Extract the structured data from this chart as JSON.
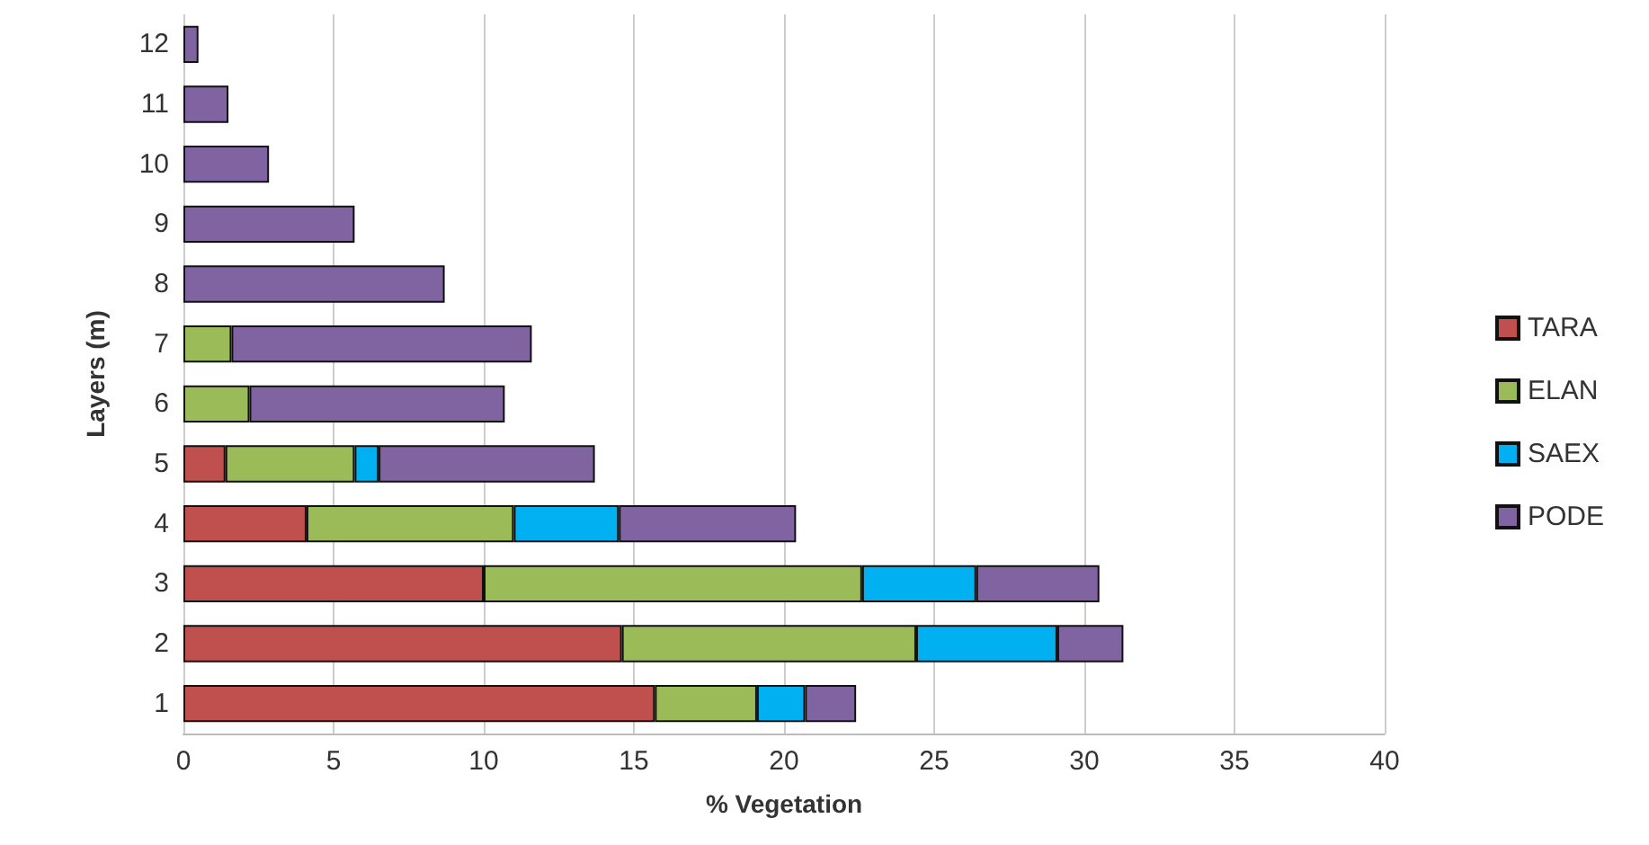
{
  "chart_data": {
    "type": "bar",
    "orientation": "horizontal",
    "stacked": true,
    "xlabel": "% Vegetation",
    "ylabel": "Layers (m)",
    "categories": [
      "12",
      "11",
      "10",
      "9",
      "8",
      "7",
      "6",
      "5",
      "4",
      "3",
      "2",
      "1"
    ],
    "series": [
      {
        "name": "TARA",
        "color": "#c0504d",
        "values": [
          null,
          null,
          null,
          null,
          null,
          null,
          null,
          1.4,
          4.1,
          10,
          14.6,
          15.7
        ]
      },
      {
        "name": "ELAN",
        "color": "#9bbb59",
        "values": [
          null,
          null,
          null,
          null,
          null,
          1.6,
          2.2,
          4.3,
          6.9,
          12.6,
          9.8,
          3.4
        ]
      },
      {
        "name": "SAEX",
        "color": "#00b0f0",
        "values": [
          null,
          null,
          null,
          null,
          null,
          null,
          null,
          0.8,
          3.5,
          3.8,
          4.7,
          1.6
        ]
      },
      {
        "name": "PODE",
        "color": "#8064a2",
        "values": [
          0.5,
          1.5,
          2.85,
          5.7,
          8.7,
          10,
          8.5,
          7.2,
          5.9,
          4.1,
          2.2,
          1.7
        ]
      }
    ],
    "xlim": [
      0,
      40
    ],
    "xticks": [
      0,
      5,
      10,
      15,
      20,
      25,
      30,
      35,
      40
    ],
    "grid": "x",
    "legend": "right"
  }
}
